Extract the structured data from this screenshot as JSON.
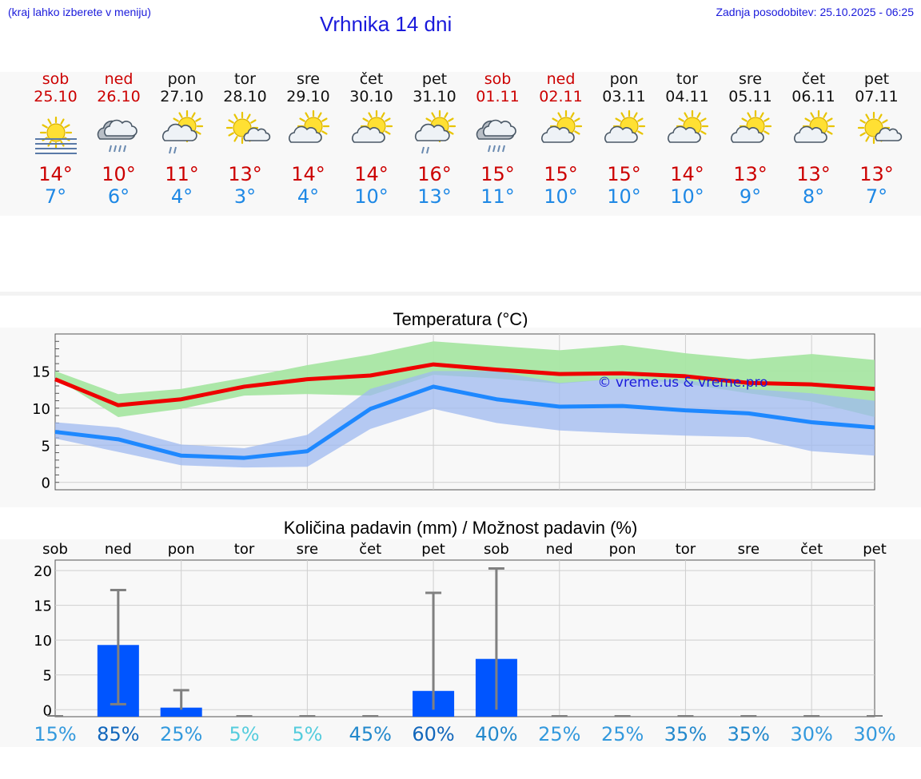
{
  "header": {
    "hint": "(kraj lahko izberete v meniju)",
    "title": "Vrhnika 14 dni",
    "updated": "Zadnja posodobitev: 25.10.2025 - 06:25"
  },
  "days": [
    {
      "name": "sob",
      "date": "25.10",
      "weekend": true,
      "icon": "sun-fog-icon",
      "tmax": "14°",
      "tmin": "7°"
    },
    {
      "name": "ned",
      "date": "26.10",
      "weekend": true,
      "icon": "rain-cloud-icon",
      "tmax": "10°",
      "tmin": "6°"
    },
    {
      "name": "pon",
      "date": "27.10",
      "weekend": false,
      "icon": "sun-cloud-rain-icon",
      "tmax": "11°",
      "tmin": "4°"
    },
    {
      "name": "tor",
      "date": "28.10",
      "weekend": false,
      "icon": "sun-small-cloud-icon",
      "tmax": "13°",
      "tmin": "3°"
    },
    {
      "name": "sre",
      "date": "29.10",
      "weekend": false,
      "icon": "sun-cloud-icon",
      "tmax": "14°",
      "tmin": "4°"
    },
    {
      "name": "čet",
      "date": "30.10",
      "weekend": false,
      "icon": "sun-cloud-icon",
      "tmax": "14°",
      "tmin": "10°"
    },
    {
      "name": "pet",
      "date": "31.10",
      "weekend": false,
      "icon": "sun-cloud-rain-icon",
      "tmax": "16°",
      "tmin": "13°"
    },
    {
      "name": "sob",
      "date": "01.11",
      "weekend": true,
      "icon": "rain-cloud-icon",
      "tmax": "15°",
      "tmin": "11°"
    },
    {
      "name": "ned",
      "date": "02.11",
      "weekend": true,
      "icon": "sun-cloud-icon",
      "tmax": "15°",
      "tmin": "10°"
    },
    {
      "name": "pon",
      "date": "03.11",
      "weekend": false,
      "icon": "sun-cloud-icon",
      "tmax": "15°",
      "tmin": "10°"
    },
    {
      "name": "tor",
      "date": "04.11",
      "weekend": false,
      "icon": "sun-cloud-icon",
      "tmax": "14°",
      "tmin": "10°"
    },
    {
      "name": "sre",
      "date": "05.11",
      "weekend": false,
      "icon": "sun-cloud-icon",
      "tmax": "13°",
      "tmin": "9°"
    },
    {
      "name": "čet",
      "date": "06.11",
      "weekend": false,
      "icon": "sun-cloud-icon",
      "tmax": "13°",
      "tmin": "8°"
    },
    {
      "name": "pet",
      "date": "07.11",
      "weekend": false,
      "icon": "sun-small-cloud-icon",
      "tmax": "13°",
      "tmin": "7°"
    }
  ],
  "colors": {
    "max": "#ee0000",
    "min": "#1e88ff",
    "max_band": "#a8e6a3",
    "min_band": "#9fbaf0",
    "bar": "#0055ff",
    "err": "#808080"
  },
  "chart_data": [
    {
      "type": "line",
      "title": "Temperatura (°C)",
      "watermark": "© vreme.us & vreme.pro",
      "categories": [
        "25.10",
        "26.10",
        "27.10",
        "28.10",
        "29.10",
        "30.10",
        "31.10",
        "01.11",
        "02.11",
        "03.11",
        "04.11",
        "05.11",
        "06.11",
        "07.11"
      ],
      "ylim": [
        -1,
        20
      ],
      "yticks": [
        0,
        5,
        10,
        15
      ],
      "series": [
        {
          "name": "max",
          "values": [
            13.9,
            10.4,
            11.2,
            12.9,
            13.9,
            14.4,
            15.9,
            15.2,
            14.6,
            14.7,
            14.3,
            13.4,
            13.2,
            12.6
          ],
          "band_low": [
            14.1,
            8.8,
            9.9,
            11.7,
            11.9,
            11.7,
            14.5,
            14.0,
            13.3,
            14.0,
            13.3,
            12.0,
            10.9,
            8.8
          ],
          "band_high": [
            15.0,
            11.9,
            12.6,
            14.1,
            15.8,
            17.2,
            19.0,
            18.4,
            17.8,
            18.5,
            17.4,
            16.6,
            17.3,
            16.5
          ]
        },
        {
          "name": "min",
          "values": [
            6.8,
            5.8,
            3.6,
            3.3,
            4.2,
            9.9,
            12.9,
            11.2,
            10.2,
            10.3,
            9.7,
            9.3,
            8.1,
            7.4
          ],
          "band_low": [
            5.9,
            4.1,
            2.3,
            2.0,
            2.1,
            7.2,
            9.9,
            8.0,
            7.0,
            6.6,
            6.3,
            6.1,
            4.2,
            3.6
          ],
          "band_high": [
            8.1,
            7.4,
            5.1,
            4.6,
            6.4,
            12.6,
            15.0,
            15.0,
            13.4,
            14.0,
            13.8,
            12.6,
            12.0,
            11.0
          ]
        }
      ]
    },
    {
      "type": "bar",
      "title": "Količina padavin (mm) / Možnost padavin (%)",
      "categories": [
        "sob",
        "ned",
        "pon",
        "tor",
        "sre",
        "čet",
        "pet",
        "sob",
        "ned",
        "pon",
        "tor",
        "sre",
        "čet",
        "pet"
      ],
      "ylim": [
        -1,
        21.5
      ],
      "yticks": [
        0,
        5,
        10,
        15,
        20
      ],
      "values": [
        0,
        9.3,
        0.3,
        0,
        0,
        0,
        2.7,
        7.3,
        0,
        0,
        0,
        0,
        0,
        0
      ],
      "err_low": [
        0,
        0.8,
        0,
        0,
        0,
        0,
        0,
        0,
        0,
        0,
        0,
        0,
        0,
        0
      ],
      "err_high": [
        0,
        17.2,
        2.8,
        0,
        0,
        0,
        16.8,
        20.3,
        0,
        0,
        0,
        0,
        0,
        0
      ],
      "probability": [
        "15%",
        "85%",
        "25%",
        "5%",
        "5%",
        "45%",
        "60%",
        "40%",
        "25%",
        "25%",
        "35%",
        "35%",
        "30%",
        "30%"
      ],
      "probability_colors": [
        "#3399dd",
        "#1166bb",
        "#3399dd",
        "#55ccdd",
        "#55ccdd",
        "#2288cc",
        "#1166bb",
        "#2288cc",
        "#3399dd",
        "#3399dd",
        "#2288cc",
        "#2288cc",
        "#3399dd",
        "#3399dd"
      ]
    }
  ]
}
